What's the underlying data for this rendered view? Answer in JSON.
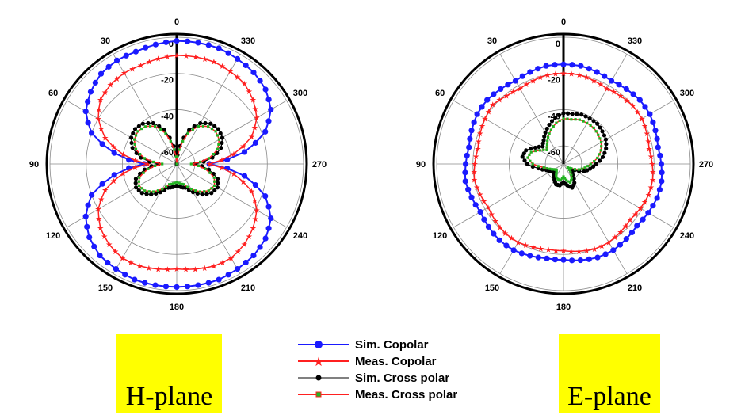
{
  "chart_data": [
    {
      "type": "polar",
      "caption": "H-plane",
      "angle_labels": [
        "0",
        "330",
        "300",
        "270",
        "240",
        "210",
        "180",
        "150",
        "120",
        "90",
        "60",
        "30"
      ],
      "radial_labels": [
        "0",
        "-20",
        "-40",
        "-60"
      ],
      "r_range": [
        -70,
        0
      ],
      "grid": true,
      "series": [
        {
          "name": "Sim. Copolar",
          "angles": [
            0,
            10,
            20,
            30,
            40,
            50,
            60,
            70,
            80,
            90,
            100,
            110,
            120,
            130,
            140,
            150,
            160,
            170,
            180,
            190,
            200,
            210,
            220,
            230,
            240,
            250,
            260,
            270,
            280,
            290,
            300,
            310,
            320,
            330,
            340,
            350
          ],
          "values": [
            -2,
            -3,
            -4,
            -4,
            -5,
            -8,
            -12,
            -20,
            -35,
            -52,
            -35,
            -20,
            -12,
            -7,
            -4,
            -3,
            -2,
            -2,
            -2,
            -2,
            -2,
            -3,
            -4,
            -6,
            -10,
            -18,
            -32,
            -52,
            -32,
            -18,
            -10,
            -6,
            -4,
            -3,
            -2,
            -2
          ]
        },
        {
          "name": "Meas. Copolar",
          "angles": [
            0,
            10,
            20,
            30,
            40,
            50,
            60,
            70,
            80,
            90,
            100,
            110,
            120,
            130,
            140,
            150,
            160,
            170,
            180,
            190,
            200,
            210,
            220,
            230,
            240,
            250,
            260,
            270,
            280,
            290,
            300,
            310,
            320,
            330,
            340,
            350
          ],
          "values": [
            -10,
            -11,
            -12,
            -12,
            -13,
            -15,
            -20,
            -28,
            -40,
            -54,
            -40,
            -28,
            -20,
            -15,
            -12,
            -10,
            -10,
            -11,
            -12,
            -11,
            -10,
            -10,
            -12,
            -15,
            -19,
            -26,
            -38,
            -52,
            -38,
            -26,
            -19,
            -15,
            -12,
            -11,
            -10,
            -10
          ]
        },
        {
          "name": "Sim. Cross polar",
          "angles": [
            0,
            10,
            20,
            30,
            40,
            50,
            60,
            70,
            80,
            90,
            100,
            110,
            120,
            130,
            140,
            150,
            160,
            170,
            180,
            190,
            200,
            210,
            220,
            230,
            240,
            250,
            260,
            270,
            280,
            290,
            300,
            310,
            320,
            330,
            340,
            350
          ],
          "values": [
            -70,
            -60,
            -50,
            -44,
            -41,
            -40,
            -41,
            -44,
            -50,
            -60,
            -52,
            -46,
            -44,
            -45,
            -48,
            -52,
            -56,
            -57,
            -58,
            -57,
            -56,
            -52,
            -48,
            -45,
            -44,
            -46,
            -52,
            -60,
            -50,
            -44,
            -41,
            -40,
            -41,
            -44,
            -50,
            -60
          ]
        },
        {
          "name": "Meas. Cross polar",
          "angles": [
            0,
            10,
            20,
            30,
            40,
            50,
            60,
            70,
            80,
            90,
            100,
            110,
            120,
            130,
            140,
            150,
            160,
            170,
            180,
            190,
            200,
            210,
            220,
            230,
            240,
            250,
            260,
            270,
            280,
            290,
            300,
            310,
            320,
            330,
            340,
            350
          ],
          "values": [
            -70,
            -62,
            -52,
            -46,
            -43,
            -42,
            -43,
            -46,
            -52,
            -62,
            -54,
            -48,
            -46,
            -47,
            -50,
            -54,
            -58,
            -59,
            -60,
            -59,
            -58,
            -54,
            -50,
            -47,
            -46,
            -48,
            -54,
            -62,
            -52,
            -46,
            -43,
            -42,
            -43,
            -46,
            -52,
            -62
          ]
        }
      ]
    },
    {
      "type": "polar",
      "caption": "E-plane",
      "angle_labels": [
        "0",
        "330",
        "300",
        "270",
        "240",
        "210",
        "180",
        "150",
        "120",
        "90",
        "60",
        "30"
      ],
      "radial_labels": [
        "0",
        "-20",
        "-40",
        "-60"
      ],
      "r_range": [
        -70,
        0
      ],
      "grid": true,
      "series": [
        {
          "name": "Sim. Copolar",
          "angles": [
            0,
            10,
            20,
            30,
            40,
            50,
            60,
            70,
            80,
            90,
            100,
            110,
            120,
            130,
            140,
            150,
            160,
            170,
            180,
            190,
            200,
            210,
            220,
            230,
            240,
            250,
            260,
            270,
            280,
            290,
            300,
            310,
            320,
            330,
            340,
            350
          ],
          "values": [
            -15,
            -15,
            -16,
            -17,
            -16,
            -15,
            -15,
            -16,
            -17,
            -16,
            -15,
            -16,
            -17,
            -16,
            -15,
            -15,
            -16,
            -17,
            -17,
            -16,
            -15,
            -15,
            -16,
            -17,
            -16,
            -15,
            -15,
            -16,
            -17,
            -16,
            -15,
            -15,
            -16,
            -17,
            -16,
            -15
          ]
        },
        {
          "name": "Meas. Copolar",
          "angles": [
            0,
            10,
            20,
            30,
            40,
            50,
            60,
            70,
            80,
            90,
            100,
            110,
            120,
            130,
            140,
            150,
            160,
            170,
            180,
            190,
            200,
            210,
            220,
            230,
            240,
            250,
            260,
            270,
            280,
            290,
            300,
            310,
            320,
            330,
            340,
            350
          ],
          "values": [
            -20,
            -20,
            -21,
            -22,
            -21,
            -19,
            -20,
            -21,
            -22,
            -21,
            -20,
            -21,
            -22,
            -21,
            -20,
            -20,
            -21,
            -22,
            -22,
            -21,
            -20,
            -20,
            -21,
            -22,
            -21,
            -20,
            -20,
            -21,
            -22,
            -21,
            -20,
            -20,
            -21,
            -22,
            -21,
            -20
          ]
        },
        {
          "name": "Sim. Cross polar",
          "angles": [
            0,
            10,
            20,
            30,
            40,
            50,
            60,
            70,
            80,
            90,
            100,
            110,
            120,
            130,
            140,
            150,
            160,
            170,
            180,
            190,
            200,
            210,
            220,
            230,
            240,
            250,
            260,
            270,
            280,
            290,
            300,
            310,
            320,
            330,
            340,
            350
          ],
          "values": [
            -42,
            -44,
            -47,
            -50,
            -53,
            -55,
            -52,
            -48,
            -47,
            -50,
            -56,
            -60,
            -62,
            -63,
            -62,
            -60,
            -58,
            -58,
            -60,
            -58,
            -56,
            -58,
            -62,
            -65,
            -63,
            -58,
            -55,
            -52,
            -48,
            -45,
            -43,
            -42,
            -41,
            -41,
            -41,
            -42
          ]
        },
        {
          "name": "Meas. Cross polar",
          "angles": [
            0,
            10,
            20,
            30,
            40,
            50,
            60,
            70,
            80,
            90,
            100,
            110,
            120,
            130,
            140,
            150,
            160,
            170,
            180,
            190,
            200,
            210,
            220,
            230,
            240,
            250,
            260,
            270,
            280,
            290,
            300,
            310,
            320,
            330,
            340,
            350
          ],
          "values": [
            -45,
            -47,
            -50,
            -53,
            -56,
            -58,
            -55,
            -51,
            -50,
            -53,
            -59,
            -62,
            -64,
            -65,
            -64,
            -62,
            -61,
            -61,
            -63,
            -61,
            -59,
            -61,
            -64,
            -67,
            -65,
            -61,
            -58,
            -55,
            -51,
            -48,
            -46,
            -45,
            -44,
            -44,
            -44,
            -45
          ]
        }
      ]
    }
  ],
  "legend": [
    {
      "name": "Sim. Copolar",
      "color": "#1a1aff",
      "marker": "circle"
    },
    {
      "name": "Meas. Copolar",
      "color": "#ff2020",
      "marker": "star"
    },
    {
      "name": "Sim. Cross polar",
      "color": "#000000",
      "marker": "dot"
    },
    {
      "name": "Meas. Cross polar",
      "color": "#ff2020",
      "marker": "square-green"
    }
  ],
  "captions": {
    "h": "H-plane",
    "e": "E-plane"
  }
}
